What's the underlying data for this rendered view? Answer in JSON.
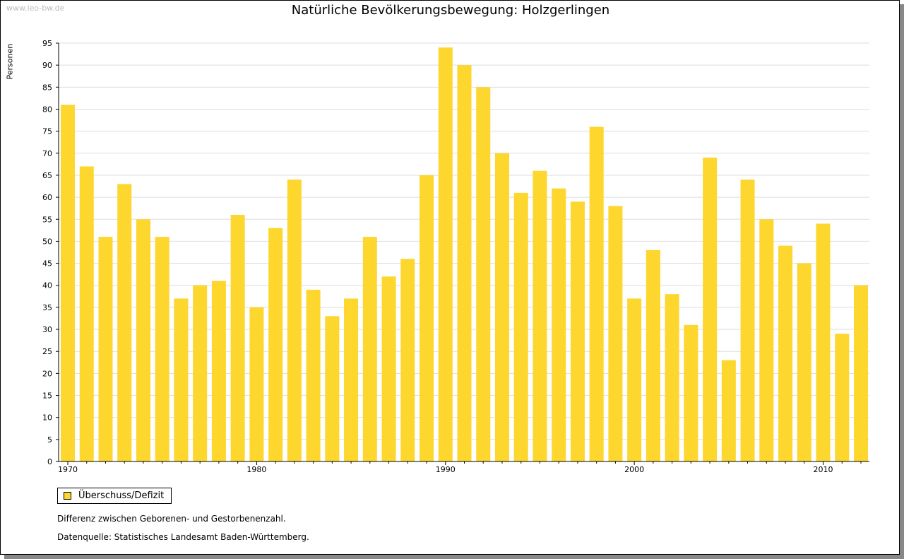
{
  "watermark": "www.leo-bw.de",
  "chart_data": {
    "type": "bar",
    "title": "Natürliche Bevölkerungsbewegung: Holzgerlingen",
    "ylabel": "Personen",
    "xlabel": "",
    "ylim": [
      0,
      95
    ],
    "yticks": [
      0,
      5,
      10,
      15,
      20,
      25,
      30,
      35,
      40,
      45,
      50,
      55,
      60,
      65,
      70,
      75,
      80,
      85,
      90,
      95
    ],
    "xtick_labels": [
      "1970",
      "1980",
      "1990",
      "2000",
      "2010"
    ],
    "grid": true,
    "color": "#fdd62e",
    "categories": [
      1970,
      1971,
      1972,
      1973,
      1974,
      1975,
      1976,
      1977,
      1978,
      1979,
      1980,
      1981,
      1982,
      1983,
      1984,
      1985,
      1986,
      1987,
      1988,
      1989,
      1990,
      1991,
      1992,
      1993,
      1994,
      1995,
      1996,
      1997,
      1998,
      1999,
      2000,
      2001,
      2002,
      2003,
      2004,
      2005,
      2006,
      2007,
      2008,
      2009,
      2010,
      2011,
      2012
    ],
    "values": [
      81,
      67,
      51,
      63,
      55,
      51,
      37,
      40,
      41,
      56,
      35,
      53,
      64,
      39,
      33,
      37,
      51,
      42,
      46,
      65,
      94,
      90,
      85,
      70,
      61,
      66,
      62,
      59,
      76,
      58,
      37,
      48,
      38,
      31,
      69,
      23,
      64,
      55,
      49,
      45,
      54,
      29,
      40
    ],
    "legend": [
      "Überschuss/Defizit"
    ],
    "legend_position": "bottom-left"
  },
  "notes": [
    "Differenz zwischen Geborenen- und Gestorbenenzahl.",
    "Datenquelle: Statistisches Landesamt Baden-Württemberg."
  ]
}
